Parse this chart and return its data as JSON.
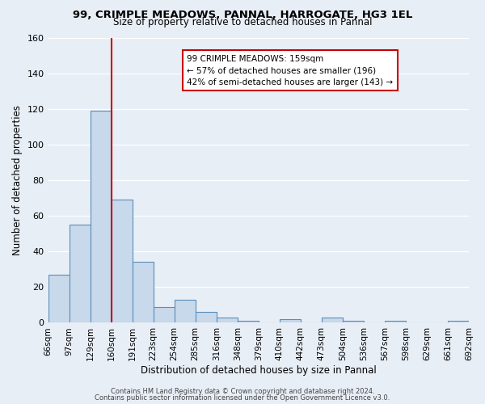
{
  "title1": "99, CRIMPLE MEADOWS, PANNAL, HARROGATE, HG3 1EL",
  "title2": "Size of property relative to detached houses in Pannal",
  "xlabel": "Distribution of detached houses by size in Pannal",
  "ylabel": "Number of detached properties",
  "bin_labels": [
    "66sqm",
    "97sqm",
    "129sqm",
    "160sqm",
    "191sqm",
    "223sqm",
    "254sqm",
    "285sqm",
    "316sqm",
    "348sqm",
    "379sqm",
    "410sqm",
    "442sqm",
    "473sqm",
    "504sqm",
    "536sqm",
    "567sqm",
    "598sqm",
    "629sqm",
    "661sqm",
    "692sqm"
  ],
  "bar_values": [
    27,
    55,
    119,
    69,
    34,
    9,
    13,
    6,
    3,
    1,
    0,
    2,
    0,
    3,
    1,
    0,
    1,
    0,
    0,
    1
  ],
  "bar_color": "#c9d9ec",
  "bar_edge_color": "#5b8db8",
  "ylim": [
    0,
    160
  ],
  "yticks": [
    0,
    20,
    40,
    60,
    80,
    100,
    120,
    140,
    160
  ],
  "vline_x": 3,
  "vline_color": "#cc0000",
  "annotation_title": "99 CRIMPLE MEADOWS: 159sqm",
  "annotation_line1": "← 57% of detached houses are smaller (196)",
  "annotation_line2": "42% of semi-detached houses are larger (143) →",
  "annotation_box_color": "#ffffff",
  "annotation_box_edge": "#cc0000",
  "footer1": "Contains HM Land Registry data © Crown copyright and database right 2024.",
  "footer2": "Contains public sector information licensed under the Open Government Licence v3.0.",
  "bg_color": "#e8eef6",
  "plot_bg_color": "#e8eef6"
}
